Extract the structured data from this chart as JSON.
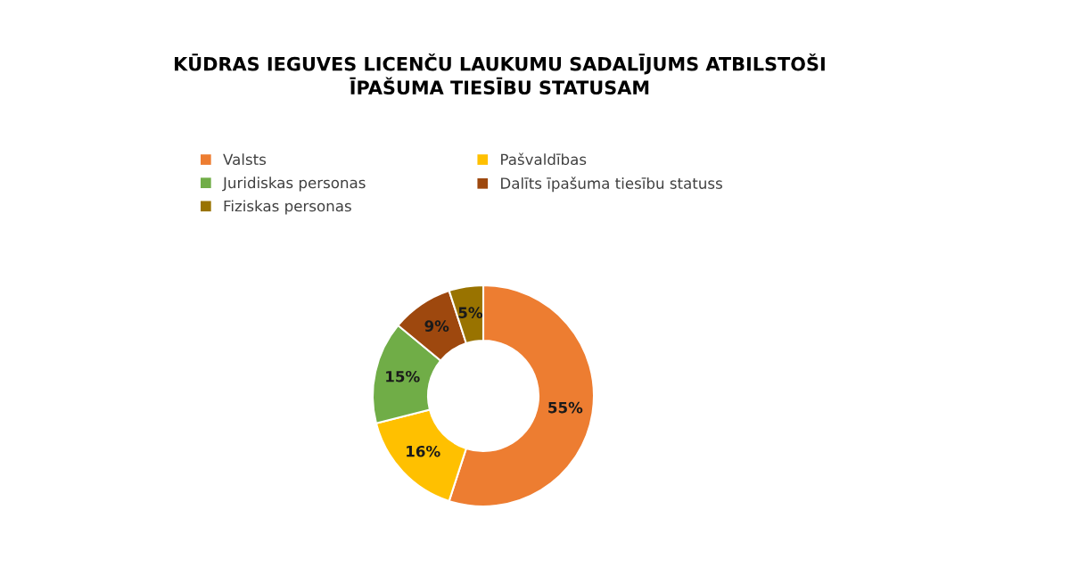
{
  "chart_data": {
    "type": "donut",
    "title": "KŪDRAS IEGUVES LICENČU LAUKUMU SADALĪJUMS ATBILSTOŠI\nĪPAŠUMA TIESĪBU STATUSAM",
    "categories": [
      "Valsts",
      "Pašvaldības",
      "Juridiskas personas",
      "Dalīts īpašuma tiesību statuss",
      "Fiziskas personas"
    ],
    "values": [
      55,
      16,
      15,
      9,
      5
    ],
    "colors": [
      "#ed7d31",
      "#ffc000",
      "#70ad47",
      "#9e480e",
      "#997300"
    ],
    "value_labels": [
      "55%",
      "16%",
      "15%",
      "9%",
      "5%"
    ],
    "legend": "top"
  }
}
